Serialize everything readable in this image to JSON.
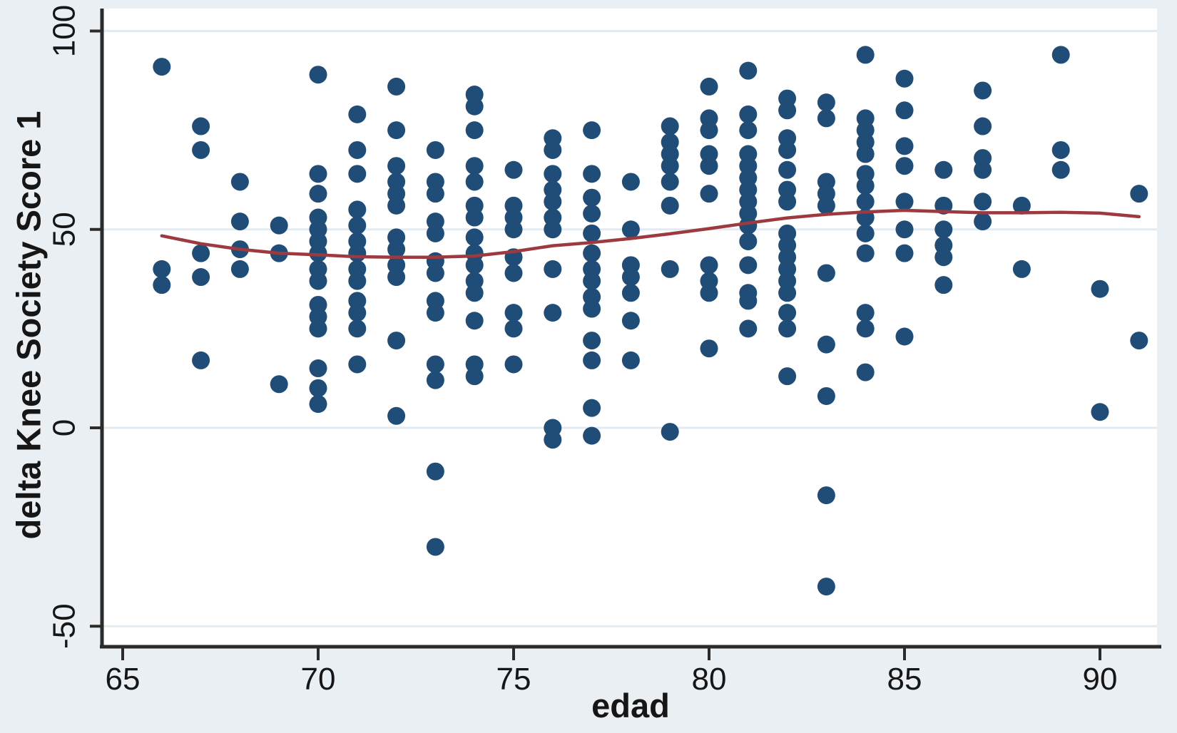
{
  "chart_data": {
    "type": "scatter",
    "title": "",
    "xlabel": "edad",
    "ylabel": "delta Knee Society Score 1",
    "x_ticks": [
      65,
      70,
      75,
      80,
      85,
      90
    ],
    "y_ticks": [
      100,
      50,
      0,
      -50
    ],
    "xlim": [
      64.5,
      91.5
    ],
    "ylim": [
      -55,
      106
    ],
    "grid": "horizontal-only",
    "legend": "none",
    "colors": {
      "outer_background": "#e9eff2",
      "plot_background": "#ffffff",
      "gridline": "#e3ebf1",
      "dot": "#1f4d78",
      "lowess_line": "#9c3a40",
      "axis": "#2b2b2b",
      "text": "#161616"
    },
    "marker": {
      "shape": "circle",
      "radius_px": 12.5
    },
    "series": [
      {
        "name": "scatter-points",
        "type": "scatter",
        "points": [
          [
            66,
            91
          ],
          [
            66,
            40
          ],
          [
            66,
            36
          ],
          [
            67,
            76
          ],
          [
            67,
            70
          ],
          [
            67,
            44
          ],
          [
            67,
            38
          ],
          [
            67,
            17
          ],
          [
            68,
            62
          ],
          [
            68,
            52
          ],
          [
            68,
            45
          ],
          [
            68,
            40
          ],
          [
            69,
            51
          ],
          [
            69,
            44
          ],
          [
            69,
            11
          ],
          [
            70,
            89
          ],
          [
            70,
            64
          ],
          [
            70,
            59
          ],
          [
            70,
            53
          ],
          [
            70,
            50
          ],
          [
            70,
            47
          ],
          [
            70,
            44
          ],
          [
            70,
            40
          ],
          [
            70,
            37
          ],
          [
            70,
            31
          ],
          [
            70,
            28
          ],
          [
            70,
            25
          ],
          [
            70,
            15
          ],
          [
            70,
            10
          ],
          [
            70,
            6
          ],
          [
            71,
            79
          ],
          [
            71,
            70
          ],
          [
            71,
            64
          ],
          [
            71,
            55
          ],
          [
            71,
            51
          ],
          [
            71,
            47
          ],
          [
            71,
            44
          ],
          [
            71,
            40
          ],
          [
            71,
            37
          ],
          [
            71,
            32
          ],
          [
            71,
            29
          ],
          [
            71,
            25
          ],
          [
            71,
            16
          ],
          [
            72,
            86
          ],
          [
            72,
            75
          ],
          [
            72,
            66
          ],
          [
            72,
            62
          ],
          [
            72,
            59
          ],
          [
            72,
            56
          ],
          [
            72,
            48
          ],
          [
            72,
            45
          ],
          [
            72,
            41
          ],
          [
            72,
            38
          ],
          [
            72,
            22
          ],
          [
            72,
            3
          ],
          [
            73,
            70
          ],
          [
            73,
            62
          ],
          [
            73,
            59
          ],
          [
            73,
            52
          ],
          [
            73,
            49
          ],
          [
            73,
            42
          ],
          [
            73,
            39
          ],
          [
            73,
            32
          ],
          [
            73,
            29
          ],
          [
            73,
            16
          ],
          [
            73,
            12
          ],
          [
            73,
            -11
          ],
          [
            73,
            -30
          ],
          [
            74,
            84
          ],
          [
            74,
            81
          ],
          [
            74,
            75
          ],
          [
            74,
            66
          ],
          [
            74,
            62
          ],
          [
            74,
            56
          ],
          [
            74,
            53
          ],
          [
            74,
            48
          ],
          [
            74,
            44
          ],
          [
            74,
            41
          ],
          [
            74,
            37
          ],
          [
            74,
            34
          ],
          [
            74,
            27
          ],
          [
            74,
            16
          ],
          [
            74,
            13
          ],
          [
            75,
            65
          ],
          [
            75,
            56
          ],
          [
            75,
            53
          ],
          [
            75,
            50
          ],
          [
            75,
            43
          ],
          [
            75,
            39
          ],
          [
            75,
            29
          ],
          [
            75,
            25
          ],
          [
            75,
            16
          ],
          [
            76,
            73
          ],
          [
            76,
            70
          ],
          [
            76,
            64
          ],
          [
            76,
            60
          ],
          [
            76,
            57
          ],
          [
            76,
            53
          ],
          [
            76,
            50
          ],
          [
            76,
            40
          ],
          [
            76,
            29
          ],
          [
            76,
            0
          ],
          [
            76,
            -3
          ],
          [
            77,
            75
          ],
          [
            77,
            64
          ],
          [
            77,
            58
          ],
          [
            77,
            54
          ],
          [
            77,
            49
          ],
          [
            77,
            44
          ],
          [
            77,
            40
          ],
          [
            77,
            37
          ],
          [
            77,
            33
          ],
          [
            77,
            30
          ],
          [
            77,
            22
          ],
          [
            77,
            17
          ],
          [
            77,
            5
          ],
          [
            77,
            -2
          ],
          [
            78,
            62
          ],
          [
            78,
            50
          ],
          [
            78,
            41
          ],
          [
            78,
            38
          ],
          [
            78,
            34
          ],
          [
            78,
            27
          ],
          [
            78,
            17
          ],
          [
            79,
            76
          ],
          [
            79,
            72
          ],
          [
            79,
            69
          ],
          [
            79,
            66
          ],
          [
            79,
            62
          ],
          [
            79,
            56
          ],
          [
            79,
            40
          ],
          [
            79,
            -1
          ],
          [
            80,
            86
          ],
          [
            80,
            78
          ],
          [
            80,
            75
          ],
          [
            80,
            69
          ],
          [
            80,
            66
          ],
          [
            80,
            59
          ],
          [
            80,
            41
          ],
          [
            80,
            37
          ],
          [
            80,
            34
          ],
          [
            80,
            20
          ],
          [
            81,
            90
          ],
          [
            81,
            79
          ],
          [
            81,
            75
          ],
          [
            81,
            69
          ],
          [
            81,
            66
          ],
          [
            81,
            63
          ],
          [
            81,
            60
          ],
          [
            81,
            57
          ],
          [
            81,
            54
          ],
          [
            81,
            51
          ],
          [
            81,
            47
          ],
          [
            81,
            41
          ],
          [
            81,
            34
          ],
          [
            81,
            32
          ],
          [
            81,
            25
          ],
          [
            82,
            83
          ],
          [
            82,
            80
          ],
          [
            82,
            73
          ],
          [
            82,
            70
          ],
          [
            82,
            65
          ],
          [
            82,
            60
          ],
          [
            82,
            57
          ],
          [
            82,
            49
          ],
          [
            82,
            46
          ],
          [
            82,
            43
          ],
          [
            82,
            40
          ],
          [
            82,
            37
          ],
          [
            82,
            34
          ],
          [
            82,
            29
          ],
          [
            82,
            25
          ],
          [
            82,
            13
          ],
          [
            83,
            82
          ],
          [
            83,
            78
          ],
          [
            83,
            62
          ],
          [
            83,
            59
          ],
          [
            83,
            56
          ],
          [
            83,
            39
          ],
          [
            83,
            21
          ],
          [
            83,
            8
          ],
          [
            83,
            -17
          ],
          [
            83,
            -40
          ],
          [
            84,
            94
          ],
          [
            84,
            78
          ],
          [
            84,
            75
          ],
          [
            84,
            72
          ],
          [
            84,
            69
          ],
          [
            84,
            64
          ],
          [
            84,
            61
          ],
          [
            84,
            57
          ],
          [
            84,
            53
          ],
          [
            84,
            49
          ],
          [
            84,
            44
          ],
          [
            84,
            29
          ],
          [
            84,
            25
          ],
          [
            84,
            14
          ],
          [
            85,
            88
          ],
          [
            85,
            80
          ],
          [
            85,
            71
          ],
          [
            85,
            66
          ],
          [
            85,
            57
          ],
          [
            85,
            50
          ],
          [
            85,
            44
          ],
          [
            85,
            23
          ],
          [
            86,
            65
          ],
          [
            86,
            56
          ],
          [
            86,
            50
          ],
          [
            86,
            46
          ],
          [
            86,
            43
          ],
          [
            86,
            36
          ],
          [
            87,
            85
          ],
          [
            87,
            76
          ],
          [
            87,
            68
          ],
          [
            87,
            65
          ],
          [
            87,
            57
          ],
          [
            87,
            52
          ],
          [
            88,
            56
          ],
          [
            88,
            40
          ],
          [
            89,
            94
          ],
          [
            89,
            70
          ],
          [
            89,
            65
          ],
          [
            90,
            35
          ],
          [
            90,
            4
          ],
          [
            91,
            59
          ],
          [
            91,
            22
          ]
        ]
      },
      {
        "name": "lowess-smooth",
        "type": "line",
        "points": [
          [
            66,
            48.4
          ],
          [
            67,
            46.4
          ],
          [
            68,
            45.0
          ],
          [
            69,
            44.0
          ],
          [
            70,
            43.6
          ],
          [
            71,
            43.1
          ],
          [
            72,
            43.0
          ],
          [
            73,
            43.0
          ],
          [
            74,
            43.3
          ],
          [
            75,
            44.4
          ],
          [
            76,
            45.9
          ],
          [
            77,
            46.7
          ],
          [
            78,
            47.7
          ],
          [
            79,
            48.9
          ],
          [
            80,
            50.2
          ],
          [
            81,
            51.6
          ],
          [
            82,
            52.9
          ],
          [
            83,
            53.8
          ],
          [
            84,
            54.4
          ],
          [
            85,
            54.8
          ],
          [
            86,
            54.5
          ],
          [
            87,
            54.2
          ],
          [
            88,
            54.2
          ],
          [
            89,
            54.3
          ],
          [
            90,
            54.1
          ],
          [
            91,
            53.2
          ]
        ]
      }
    ]
  }
}
